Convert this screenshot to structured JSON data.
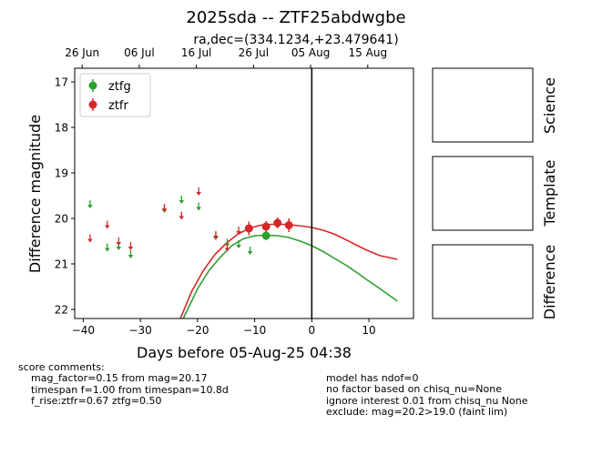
{
  "figure": {
    "title": "2025sda -- ZTF25abdwgbe",
    "subtitle": "ra,dec=(334.1234,+23.479641)",
    "panels": [
      {
        "label": "Science"
      },
      {
        "label": "Template"
      },
      {
        "label": "Difference"
      }
    ],
    "score_comments": {
      "heading": "score comments:",
      "lines": [
        "mag_factor=0.15 from mag=20.17",
        "timespan f=1.00 from timespan=10.8d",
        "f_rise:ztfr=0.67 ztfg=0.50"
      ]
    },
    "model_comments": {
      "lines": [
        "model has ndof=0",
        "no factor based on chisq_nu=None",
        "ignore interest 0.01 from chisq_nu None",
        "exclude: mag=20.2>19.0 (faint lim)"
      ]
    }
  },
  "chart_data": {
    "type": "scatter",
    "xlabel": "Days before 05-Aug-25 04:38",
    "ylabel": "Difference magnitude",
    "xlim": [
      -41.5,
      17.8
    ],
    "ylim": [
      22.2,
      16.7
    ],
    "y_inverted": true,
    "xticks": [
      -40,
      -30,
      -20,
      -10,
      0,
      10
    ],
    "yticks": [
      17,
      18,
      19,
      20,
      21,
      22
    ],
    "top_axis": {
      "ticks": [
        {
          "label": "26 Jun",
          "x": -40.2
        },
        {
          "label": "06 Jul",
          "x": -30.2
        },
        {
          "label": "16 Jul",
          "x": -20.2
        },
        {
          "label": "26 Jul",
          "x": -10.2
        },
        {
          "label": "05 Aug",
          "x": -0.2
        },
        {
          "label": "15 Aug",
          "x": 9.8
        }
      ]
    },
    "vline_x": 0,
    "legend": {
      "position": "upper-left"
    },
    "series": [
      {
        "name": "ztfg",
        "color": "#2ca02c",
        "detections": [
          {
            "x": -8,
            "y": 20.38,
            "err": 0.1
          }
        ],
        "upper_limits": [
          {
            "x": -38.8,
            "y": 19.7
          },
          {
            "x": -35.8,
            "y": 20.65
          },
          {
            "x": -33.8,
            "y": 20.62
          },
          {
            "x": -31.7,
            "y": 20.8
          },
          {
            "x": -25.8,
            "y": 19.8
          },
          {
            "x": -22.8,
            "y": 19.6
          },
          {
            "x": -19.8,
            "y": 19.75
          },
          {
            "x": -16.8,
            "y": 20.4
          },
          {
            "x": -14.8,
            "y": 20.55
          },
          {
            "x": -12.8,
            "y": 20.58
          },
          {
            "x": -10.8,
            "y": 20.72
          }
        ],
        "model": {
          "x": [
            -22.5,
            -20,
            -18,
            -16,
            -14,
            -12,
            -10,
            -8,
            -6,
            -4,
            -2,
            0,
            2,
            4,
            6,
            8,
            10,
            12,
            15
          ],
          "y": [
            22.2,
            21.55,
            21.15,
            20.85,
            20.6,
            20.45,
            20.38,
            20.37,
            20.38,
            20.42,
            20.5,
            20.6,
            20.73,
            20.88,
            21.03,
            21.2,
            21.38,
            21.55,
            21.82
          ]
        }
      },
      {
        "name": "ztfr",
        "color": "#d62728",
        "detections": [
          {
            "x": -11,
            "y": 20.22,
            "err": 0.15
          },
          {
            "x": -8,
            "y": 20.18,
            "err": 0.12
          },
          {
            "x": -6,
            "y": 20.1,
            "err": 0.12
          },
          {
            "x": -4,
            "y": 20.15,
            "err": 0.15
          }
        ],
        "upper_limits": [
          {
            "x": -38.8,
            "y": 20.45
          },
          {
            "x": -35.8,
            "y": 20.15
          },
          {
            "x": -33.8,
            "y": 20.52
          },
          {
            "x": -31.7,
            "y": 20.62
          },
          {
            "x": -25.8,
            "y": 19.78
          },
          {
            "x": -22.8,
            "y": 19.95
          },
          {
            "x": -19.8,
            "y": 19.42
          },
          {
            "x": -16.8,
            "y": 20.38
          },
          {
            "x": -14.8,
            "y": 20.65
          },
          {
            "x": -12.8,
            "y": 20.28
          }
        ],
        "model": {
          "x": [
            -23,
            -21,
            -19,
            -17,
            -15,
            -13,
            -11,
            -9,
            -7,
            -5,
            -3,
            -1,
            0,
            2,
            4,
            6,
            8,
            10,
            12,
            15
          ],
          "y": [
            22.2,
            21.6,
            21.15,
            20.8,
            20.55,
            20.35,
            20.22,
            20.15,
            20.13,
            20.13,
            20.15,
            20.18,
            20.2,
            20.26,
            20.35,
            20.47,
            20.6,
            20.72,
            20.82,
            20.9
          ]
        }
      }
    ]
  }
}
